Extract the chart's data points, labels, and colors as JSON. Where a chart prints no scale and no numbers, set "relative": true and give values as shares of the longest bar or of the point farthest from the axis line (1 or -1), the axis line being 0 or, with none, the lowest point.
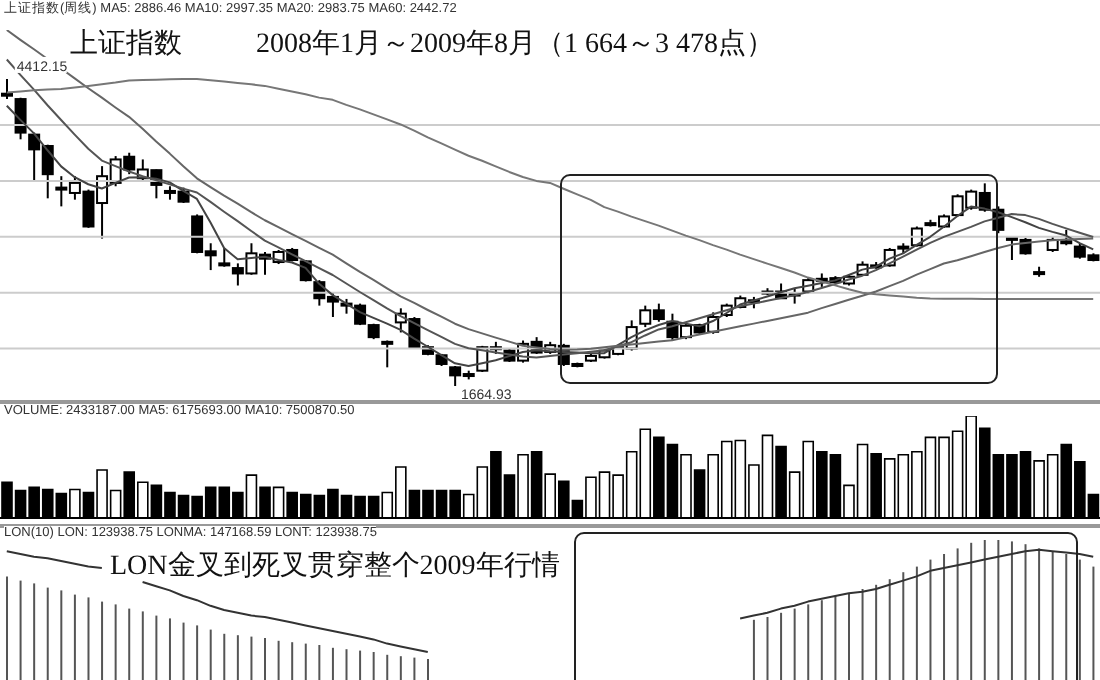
{
  "chart_data": [
    {
      "type": "candlestick",
      "title": "上证指数",
      "subtitle": "2008年1月～2009年8月（1 664～3 478点）",
      "tick_labels": false,
      "grid": "y",
      "color": "#000000",
      "annotations": [
        "上证指数(周线)",
        "4412.15",
        "1664.93"
      ],
      "yticks": [
        {
          "value": 2000,
          "label": null
        },
        {
          "value": 2500,
          "label": null
        },
        {
          "value": 3000,
          "label": null
        },
        {
          "value": 3500,
          "label": null
        },
        {
          "value": 4000,
          "label": null
        }
      ],
      "categories": [
        null,
        null,
        null,
        null,
        null,
        null,
        null,
        null,
        null,
        null,
        null,
        null,
        null,
        null,
        null,
        null,
        null,
        null,
        null,
        null,
        null,
        null,
        null,
        null,
        null,
        null,
        null,
        null,
        null,
        null,
        null,
        null,
        null,
        null,
        null,
        null,
        null,
        null,
        null,
        null,
        null,
        null,
        null,
        null,
        null,
        null,
        null,
        null,
        null,
        null,
        null,
        null,
        null,
        null,
        null,
        null,
        null,
        null,
        null,
        null,
        null,
        null,
        null,
        null,
        null,
        null,
        null,
        null,
        null,
        null,
        null,
        null,
        null,
        null,
        null,
        null,
        null,
        null,
        null,
        null,
        null
      ],
      "ohlc": [
        [
          4280,
          4412.15,
          4232,
          4280
        ],
        [
          4232,
          4244,
          3872,
          3932
        ],
        [
          3914,
          3932,
          3500,
          3782
        ],
        [
          3812,
          3824,
          3344,
          3560
        ],
        [
          3440,
          3542,
          3272,
          3440
        ],
        [
          3392,
          3542,
          3332,
          3482
        ],
        [
          3404,
          3422,
          3080,
          3092
        ],
        [
          3302,
          3632,
          2984,
          3542
        ],
        [
          3482,
          3722,
          3452,
          3692
        ],
        [
          3716,
          3752,
          3560,
          3602
        ],
        [
          3524,
          3692,
          3500,
          3602
        ],
        [
          3596,
          3602,
          3344,
          3464
        ],
        [
          3410,
          3452,
          3332,
          3410
        ],
        [
          3404,
          3440,
          3302,
          3314
        ],
        [
          3182,
          3200,
          2852,
          2864
        ],
        [
          2870,
          2942,
          2702,
          2834
        ],
        [
          2762,
          2900,
          2732,
          2762
        ],
        [
          2720,
          2762,
          2564,
          2672
        ],
        [
          2672,
          2942,
          2660,
          2852
        ],
        [
          2840,
          2864,
          2660,
          2804
        ],
        [
          2774,
          2882,
          2756,
          2864
        ],
        [
          2882,
          2900,
          2780,
          2792
        ],
        [
          2780,
          2792,
          2600,
          2612
        ],
        [
          2594,
          2612,
          2384,
          2450
        ],
        [
          2462,
          2504,
          2282,
          2420
        ],
        [
          2402,
          2444,
          2312,
          2402
        ],
        [
          2384,
          2402,
          2210,
          2222
        ],
        [
          2210,
          2222,
          2084,
          2102
        ],
        [
          2060,
          2072,
          1832,
          2060
        ],
        [
          2234,
          2360,
          2144,
          2312
        ],
        [
          2264,
          2282,
          2000,
          2012
        ],
        [
          2012,
          2030,
          1940,
          1952
        ],
        [
          1940,
          1952,
          1844,
          1862
        ],
        [
          1832,
          1844,
          1664.93,
          1760
        ],
        [
          1772,
          1802,
          1724,
          1772
        ],
        [
          1802,
          2024,
          1790,
          2012
        ],
        [
          2012,
          2060,
          1952,
          2012
        ],
        [
          1982,
          1999,
          1880,
          1892
        ],
        [
          1892,
          2072,
          1874,
          2042
        ],
        [
          2060,
          2102,
          1952,
          1964
        ],
        [
          1970,
          2060,
          1952,
          2030
        ],
        [
          2024,
          2042,
          1844,
          1862
        ],
        [
          1862,
          1874,
          1832,
          1844
        ],
        [
          1892,
          1952,
          1880,
          1934
        ],
        [
          1922,
          1999,
          1910,
          1982
        ],
        [
          1952,
          2024,
          1940,
          2012
        ],
        [
          2000,
          2252,
          1982,
          2192
        ],
        [
          2222,
          2384,
          2192,
          2342
        ],
        [
          2342,
          2402,
          2240,
          2264
        ],
        [
          2240,
          2312,
          2072,
          2102
        ],
        [
          2102,
          2222,
          2084,
          2204
        ],
        [
          2210,
          2222,
          2132,
          2144
        ],
        [
          2150,
          2324,
          2132,
          2282
        ],
        [
          2300,
          2402,
          2282,
          2384
        ],
        [
          2372,
          2474,
          2360,
          2450
        ],
        [
          2432,
          2462,
          2360,
          2432
        ],
        [
          2510,
          2540,
          2480,
          2510
        ],
        [
          2510,
          2582,
          2444,
          2450
        ],
        [
          2492,
          2540,
          2402,
          2492
        ],
        [
          2510,
          2630,
          2492,
          2612
        ],
        [
          2624,
          2672,
          2552,
          2624
        ],
        [
          2630,
          2648,
          2582,
          2594
        ],
        [
          2582,
          2660,
          2564,
          2642
        ],
        [
          2660,
          2780,
          2654,
          2750
        ],
        [
          2744,
          2774,
          2714,
          2744
        ],
        [
          2744,
          2900,
          2732,
          2882
        ],
        [
          2912,
          2942,
          2852,
          2912
        ],
        [
          2924,
          3092,
          2912,
          3074
        ],
        [
          3122,
          3152,
          3092,
          3122
        ],
        [
          3092,
          3200,
          3080,
          3182
        ],
        [
          3194,
          3380,
          3182,
          3362
        ],
        [
          3260,
          3422,
          3242,
          3404
        ],
        [
          3392,
          3478,
          3224,
          3242
        ],
        [
          3242,
          3272,
          3032,
          3062
        ],
        [
          2990,
          3002,
          2792,
          2990
        ],
        [
          2972,
          2990,
          2840,
          2852
        ],
        [
          2684,
          2732,
          2642,
          2684
        ],
        [
          2882,
          3002,
          2864,
          2972
        ],
        [
          2960,
          3062,
          2924,
          2960
        ],
        [
          2912,
          2942,
          2804,
          2822
        ],
        [
          2834,
          2852,
          2780,
          2792
        ]
      ],
      "series": [
        {
          "name": "MA5: 2886.46",
          "type": "line",
          "color": "#444444",
          "values": [
            4172,
            4046,
            3925,
            3774,
            3630,
            3533,
            3470,
            3432,
            3482,
            3530,
            3532,
            3520,
            3487,
            3411,
            3339,
            3127,
            2900,
            2798,
            2810,
            2821,
            2793,
            2770,
            2722,
            2579,
            2478,
            2402,
            2326,
            2274,
            2223,
            2167,
            2088,
            2016,
            1941,
            1868,
            1844,
            1869,
            1895,
            1932,
            1969,
            1985,
            1976,
            1970,
            1964,
            1958,
            1959,
            2031,
            2103,
            2163,
            2211,
            2247,
            2223,
            2199,
            2246,
            2318,
            2394,
            2430,
            2466,
            2503,
            2539,
            2562,
            2586,
            2610,
            2658,
            2706,
            2732,
            2804,
            2852,
            2928,
            3000,
            3090,
            3186,
            3270,
            3252,
            3220,
            3176,
            3130,
            3080,
            3044,
            3011,
            2944,
            2886.46
          ]
        },
        {
          "name": "MA10: 2997.35",
          "type": "line",
          "color": "#555555",
          "values": [
            4586,
            4448,
            4316,
            4177,
            4045,
            3914,
            3788,
            3682,
            3632,
            3584,
            3543,
            3505,
            3469,
            3431,
            3396,
            3312,
            3224,
            3140,
            3052,
            2966,
            2906,
            2843,
            2783,
            2720,
            2658,
            2582,
            2506,
            2434,
            2359,
            2291,
            2228,
            2165,
            2105,
            2042,
            2003,
            1984,
            1965,
            1947,
            1928,
            1920,
            1934,
            1946,
            1959,
            1971,
            1985,
            2021,
            2057,
            2117,
            2171,
            2199,
            2235,
            2271,
            2307,
            2343,
            2379,
            2403,
            2427,
            2452,
            2476,
            2506,
            2542,
            2578,
            2618,
            2652,
            2702,
            2762,
            2822,
            2885,
            2945,
            2999,
            3044,
            3089,
            3138,
            3170,
            3203,
            3194,
            3160,
            3115,
            3075,
            3036,
            2997.35
          ]
        },
        {
          "name": "MA20: 2983.75",
          "type": "line",
          "color": "#666666",
          "values": [
            4850,
            4762,
            4678,
            4590,
            4506,
            4417,
            4329,
            4245,
            4157,
            4073,
            3966,
            3852,
            3744,
            3631,
            3523,
            3444,
            3368,
            3296,
            3220,
            3148,
            3086,
            3023,
            2963,
            2900,
            2840,
            2762,
            2686,
            2614,
            2539,
            2467,
            2408,
            2345,
            2285,
            2222,
            2174,
            2136,
            2098,
            2062,
            2025,
            2010,
            1995,
            1990,
            1992,
            1998,
            2012,
            2025,
            2037,
            2050,
            2062,
            2075,
            2101,
            2125,
            2150,
            2174,
            2199,
            2223,
            2247,
            2272,
            2296,
            2321,
            2362,
            2398,
            2436,
            2472,
            2510,
            2558,
            2606,
            2662,
            2710,
            2761,
            2790,
            2826,
            2864,
            2900,
            2930,
            2945,
            2958,
            2968,
            2975,
            2980,
            2983.75
          ]
        },
        {
          "name": "MA60: 2442.72",
          "type": "line",
          "color": "#777777",
          "values": [
            4290,
            4300,
            4310,
            4318,
            4322,
            4335,
            4350,
            4365,
            4380,
            4398,
            4402,
            4406,
            4410,
            4412,
            4412,
            4400,
            4390,
            4376,
            4364,
            4350,
            4325,
            4300,
            4275,
            4245,
            4225,
            4180,
            4140,
            4095,
            4050,
            4005,
            3950,
            3890,
            3835,
            3780,
            3725,
            3680,
            3630,
            3580,
            3535,
            3500,
            3482,
            3430,
            3380,
            3330,
            3265,
            3225,
            3180,
            3140,
            3100,
            3055,
            3010,
            2970,
            2925,
            2885,
            2840,
            2800,
            2760,
            2720,
            2680,
            2635,
            2600,
            2565,
            2530,
            2500,
            2485,
            2475,
            2465,
            2455,
            2448,
            2445,
            2445,
            2445,
            2444,
            2444,
            2444,
            2443,
            2443,
            2443,
            2443,
            2443,
            2442.72
          ]
        }
      ]
    },
    {
      "type": "bar",
      "relative": true,
      "tick_labels": false,
      "annotations": [
        "VOLUME: 2433187.00 MA5: 6175693.00 MA10: 7500870.50"
      ],
      "categories": [
        null,
        null,
        null,
        null,
        null,
        null,
        null,
        null,
        null,
        null,
        null,
        null,
        null,
        null,
        null,
        null,
        null,
        null,
        null,
        null,
        null,
        null,
        null,
        null,
        null,
        null,
        null,
        null,
        null,
        null,
        null,
        null,
        null,
        null,
        null,
        null,
        null,
        null,
        null,
        null,
        null,
        null,
        null,
        null,
        null,
        null,
        null,
        null,
        null,
        null,
        null,
        null,
        null,
        null,
        null,
        null,
        null,
        null,
        null,
        null,
        null,
        null,
        null,
        null,
        null,
        null,
        null,
        null,
        null,
        null,
        null,
        null,
        null,
        null,
        null,
        null,
        null,
        null,
        null,
        null,
        null
      ],
      "values": [
        0.35,
        0.27,
        0.3,
        0.28,
        0.24,
        0.28,
        0.25,
        0.47,
        0.27,
        0.45,
        0.35,
        0.32,
        0.25,
        0.22,
        0.21,
        0.3,
        0.3,
        0.25,
        0.42,
        0.3,
        0.3,
        0.25,
        0.23,
        0.22,
        0.28,
        0.22,
        0.21,
        0.21,
        0.25,
        0.5,
        0.27,
        0.27,
        0.27,
        0.27,
        0.23,
        0.5,
        0.65,
        0.42,
        0.62,
        0.65,
        0.43,
        0.36,
        0.17,
        0.4,
        0.45,
        0.42,
        0.65,
        0.87,
        0.79,
        0.72,
        0.62,
        0.47,
        0.62,
        0.75,
        0.76,
        0.52,
        0.81,
        0.7,
        0.45,
        0.75,
        0.65,
        0.62,
        0.32,
        0.72,
        0.63,
        0.58,
        0.62,
        0.65,
        0.79,
        0.79,
        0.85,
        1,
        0.88,
        0.62,
        0.62,
        0.65,
        0.56,
        0.62,
        0.72,
        0.55,
        0.23
      ],
      "colors": [
        "#000000",
        "#000000",
        "#000000",
        "#000000",
        "#000000",
        "#ffffff",
        "#000000",
        "#ffffff",
        "#ffffff",
        "#000000",
        "#ffffff",
        "#000000",
        "#000000",
        "#000000",
        "#000000",
        "#000000",
        "#000000",
        "#000000",
        "#ffffff",
        "#000000",
        "#ffffff",
        "#000000",
        "#000000",
        "#000000",
        "#000000",
        "#000000",
        "#000000",
        "#000000",
        "#ffffff",
        "#ffffff",
        "#000000",
        "#000000",
        "#000000",
        "#000000",
        "#ffffff",
        "#ffffff",
        "#000000",
        "#000000",
        "#ffffff",
        "#000000",
        "#ffffff",
        "#000000",
        "#000000",
        "#ffffff",
        "#ffffff",
        "#ffffff",
        "#ffffff",
        "#ffffff",
        "#000000",
        "#000000",
        "#ffffff",
        "#000000",
        "#ffffff",
        "#ffffff",
        "#ffffff",
        "#ffffff",
        "#ffffff",
        "#000000",
        "#ffffff",
        "#ffffff",
        "#000000",
        "#000000",
        "#ffffff",
        "#ffffff",
        "#000000",
        "#ffffff",
        "#ffffff",
        "#ffffff",
        "#ffffff",
        "#ffffff",
        "#ffffff",
        "#ffffff",
        "#000000",
        "#000000",
        "#000000",
        "#000000",
        "#ffffff",
        "#ffffff",
        "#000000",
        "#000000",
        "#000000"
      ]
    },
    {
      "type": "bar",
      "relative": true,
      "tick_labels": false,
      "annotations": [
        "LON(10) LON: 123938.75 LONMA: 147168.59 LONT: 123938.75",
        "LON金叉到死叉贯穿整个2009年行情"
      ],
      "categories": [
        null,
        null,
        null,
        null,
        null,
        null,
        null,
        null,
        null,
        null,
        null,
        null,
        null,
        null,
        null,
        null,
        null,
        null,
        null,
        null,
        null,
        null,
        null,
        null,
        null,
        null,
        null,
        null,
        null,
        null,
        null,
        null,
        null,
        null,
        null,
        null,
        null,
        null,
        null,
        null,
        null,
        null,
        null,
        null,
        null,
        null,
        null,
        null,
        null,
        null,
        null,
        null,
        null,
        null,
        null,
        null,
        null,
        null,
        null,
        null,
        null,
        null,
        null,
        null,
        null,
        null,
        null,
        null,
        null,
        null,
        null,
        null,
        null,
        null,
        null,
        null,
        null,
        null,
        null,
        null,
        null
      ],
      "series": [
        {
          "color": "#555555",
          "values": [
            0.74,
            0.71,
            0.69,
            0.66,
            0.64,
            0.61,
            0.59,
            0.56,
            0.54,
            0.51,
            0.49,
            0.46,
            0.44,
            0.41,
            0.39,
            0.36,
            0.33,
            0.32,
            0.31,
            0.3,
            0.28,
            0.27,
            0.26,
            0.25,
            0.23,
            0.22,
            0.21,
            0.2,
            0.18,
            0.17,
            0.16,
            0.15,
            null,
            null,
            null,
            null,
            null,
            null,
            null,
            null,
            null,
            null,
            null,
            null,
            null,
            null,
            null,
            null,
            null,
            null,
            null,
            null,
            null,
            null,
            null,
            0.43,
            0.45,
            0.48,
            0.51,
            0.54,
            0.57,
            0.6,
            0.62,
            0.65,
            0.68,
            0.72,
            0.77,
            0.81,
            0.86,
            0.9,
            0.94,
            0.98,
            1,
            1,
            0.99,
            0.97,
            0.94,
            0.92,
            0.9,
            0.86,
            0.81
          ]
        },
        {
          "type": "line",
          "color": "#333333",
          "values": [
            0.92,
            0.9,
            0.88,
            0.87,
            0.85,
            0.83,
            0.81,
            0.8,
            null,
            null,
            0.7,
            0.67,
            0.64,
            0.6,
            0.57,
            0.53,
            0.5,
            0.48,
            0.46,
            0.45,
            0.43,
            0.41,
            0.39,
            0.37,
            0.35,
            0.33,
            0.31,
            0.29,
            0.26,
            0.24,
            0.22,
            0.2,
            null,
            null,
            null,
            null,
            null,
            null,
            null,
            null,
            null,
            null,
            null,
            null,
            null,
            null,
            null,
            null,
            null,
            null,
            null,
            null,
            null,
            null,
            0.44,
            0.46,
            0.48,
            0.51,
            0.53,
            0.56,
            0.58,
            0.6,
            0.62,
            0.63,
            0.65,
            0.68,
            0.71,
            0.74,
            0.78,
            0.8,
            0.82,
            0.84,
            0.86,
            0.88,
            0.9,
            0.92,
            0.93,
            0.92,
            0.91,
            0.9,
            0.88
          ]
        }
      ]
    }
  ]
}
